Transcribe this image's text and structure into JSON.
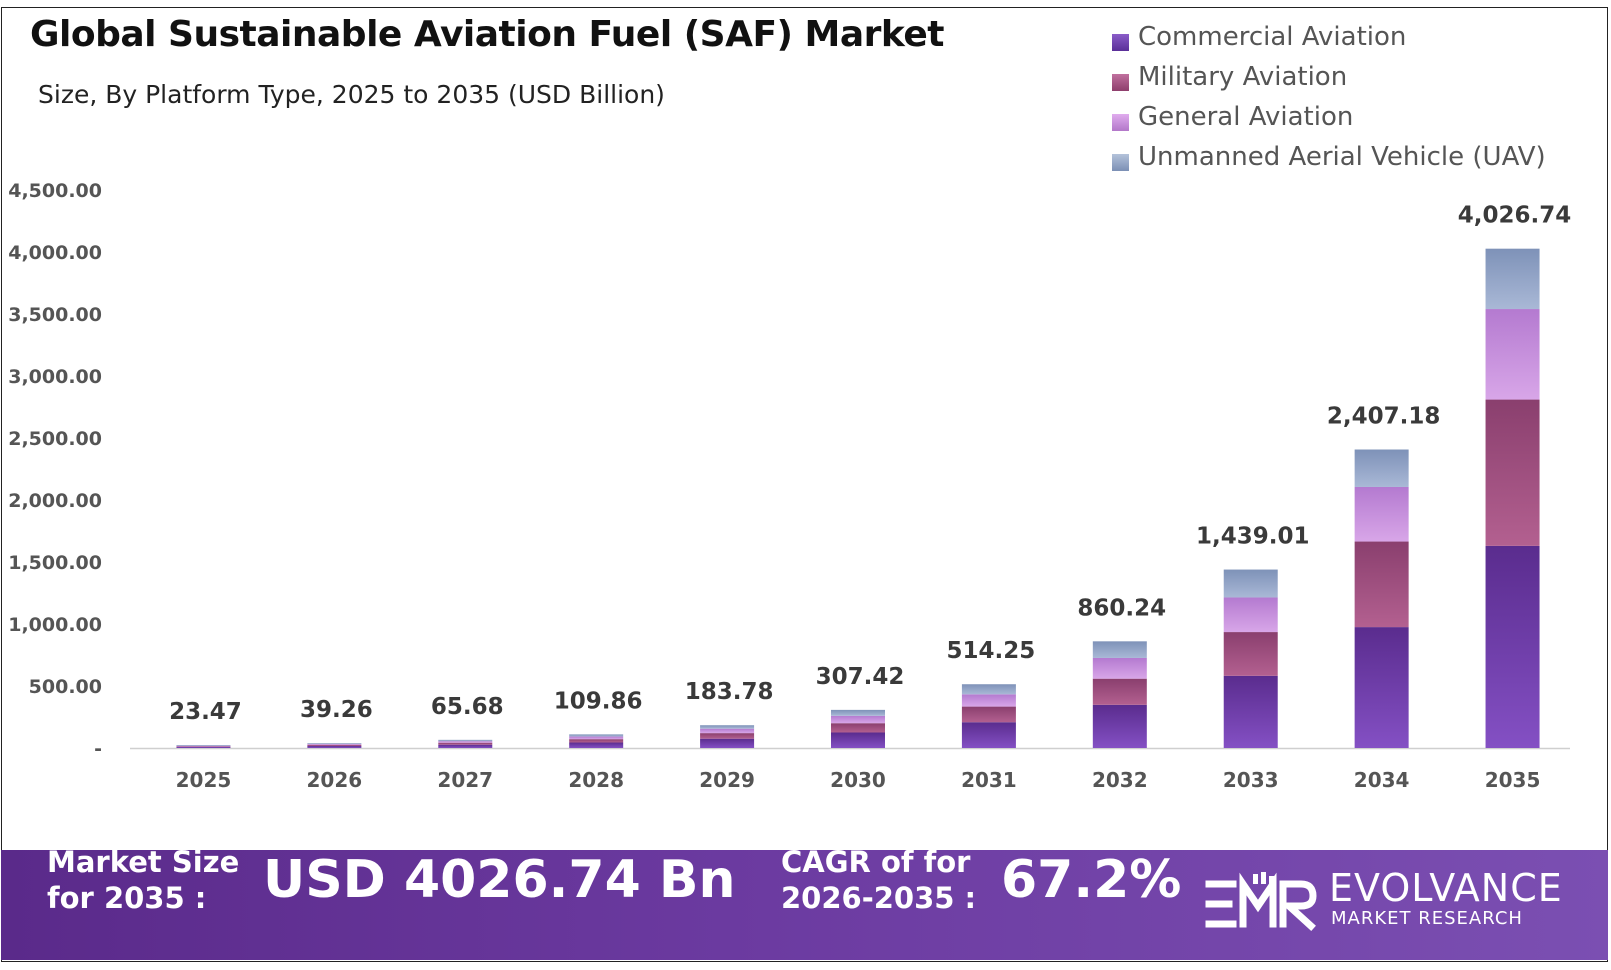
{
  "title": "Global Sustainable Aviation Fuel (SAF) Market",
  "subtitle": "Size, By Platform Type, 2025 to 2035 (USD Billion)",
  "colors": {
    "commercial": "#7040b0",
    "military": "#a2507f",
    "general": "#c68bd8",
    "uav": "#8fa4c6",
    "axis": "#333333",
    "footer_bg": "#5f2f90"
  },
  "chart_data": {
    "type": "bar",
    "stacked": true,
    "title": "Global Sustainable Aviation Fuel (SAF) Market",
    "subtitle": "Size, By Platform Type, 2025 to 2035 (USD Billion)",
    "categories": [
      "2025",
      "2026",
      "2027",
      "2028",
      "2029",
      "2030",
      "2031",
      "2032",
      "2033",
      "2034",
      "2035"
    ],
    "series": [
      {
        "name": "Commercial Aviation",
        "color": "#7040b0",
        "values": [
          9.6,
          16.0,
          26.6,
          44.3,
          75.0,
          125.0,
          208.0,
          348.0,
          582.0,
          975.0,
          1630.0
        ]
      },
      {
        "name": "Military Aviation",
        "color": "#a2507f",
        "values": [
          5.8,
          9.6,
          16.1,
          27.0,
          45.0,
          75.0,
          126.0,
          211.0,
          353.0,
          690.0,
          1180.0
        ]
      },
      {
        "name": "General Aviation",
        "color": "#c68bd8",
        "values": [
          4.6,
          7.6,
          12.7,
          21.2,
          35.5,
          59.5,
          99.0,
          167.0,
          279.0,
          440.0,
          730.0
        ]
      },
      {
        "name": "Unmanned Aerial Vehicle (UAV)",
        "color": "#8fa4c6",
        "values": [
          3.47,
          6.06,
          10.28,
          17.36,
          28.28,
          47.92,
          81.25,
          134.24,
          225.01,
          302.18,
          486.74
        ]
      }
    ],
    "totals": [
      23.47,
      39.26,
      65.68,
      109.86,
      183.78,
      307.42,
      514.25,
      860.24,
      1439.01,
      2407.18,
      4026.74
    ],
    "total_labels": [
      "23.47",
      "39.26",
      "65.68",
      "109.86",
      "183.78",
      "307.42",
      "514.25",
      "860.24",
      "1,439.01",
      "2,407.18",
      "4,026.74"
    ],
    "ylim": [
      0,
      4500
    ],
    "yticks": [
      0,
      500,
      1000,
      1500,
      2000,
      2500,
      3000,
      3500,
      4000,
      4500
    ],
    "ytick_labels": [
      "-",
      "500.00",
      "1,000.00",
      "1,500.00",
      "2,000.00",
      "2,500.00",
      "3,000.00",
      "3,500.00",
      "4,000.00",
      "4,500.00"
    ],
    "xlabel": "",
    "ylabel": "",
    "grid": false,
    "legend_position": "top-right"
  },
  "footer": {
    "market_size_label_line1": "Market Size",
    "market_size_label_line2": "for 2035 :",
    "market_size_value": "USD 4026.74 Bn",
    "cagr_label_line1": "CAGR of for",
    "cagr_label_line2": "2026-2035 :",
    "cagr_value": "67.2%"
  },
  "brand": {
    "logo_icon": "emr-logo-icon",
    "name": "EVOLVANCE",
    "tagline": "MARKET RESEARCH"
  }
}
